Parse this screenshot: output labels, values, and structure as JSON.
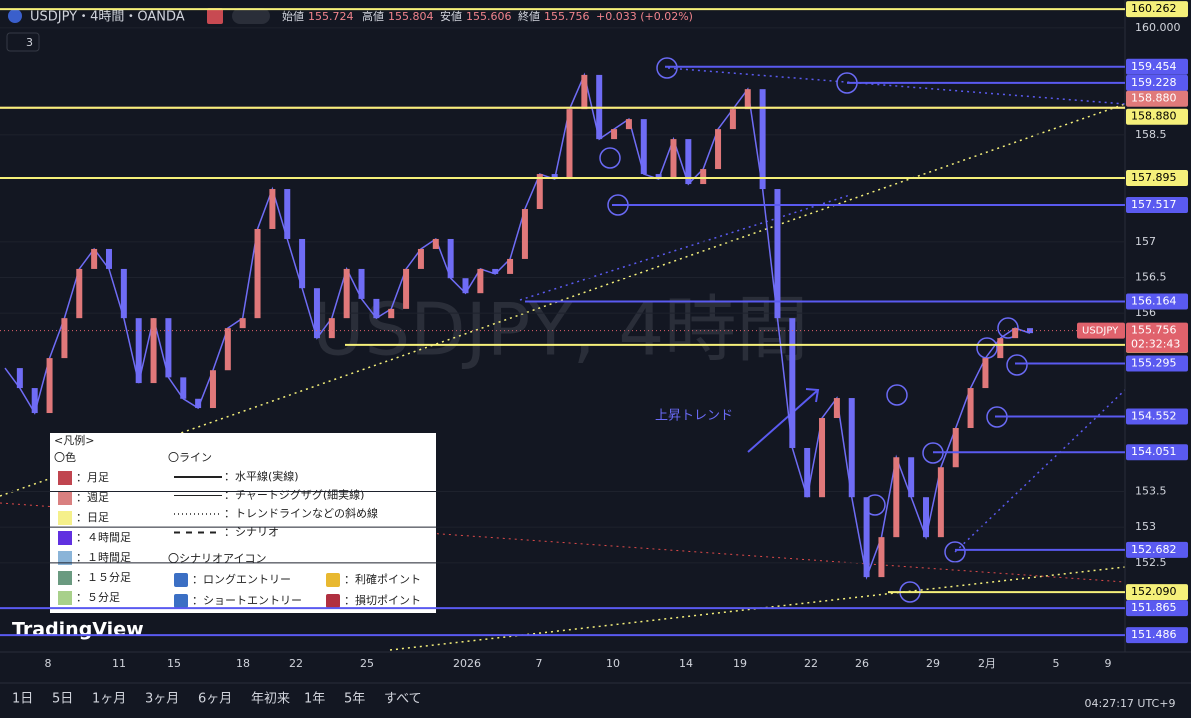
{
  "header": {
    "symbol": "USDJPY・4時間・OANDA",
    "open_label": "始値",
    "open": "155.724",
    "high_label": "高値",
    "high": "155.804",
    "low_label": "安値",
    "low": "155.606",
    "close_label": "終値",
    "close": "155.756",
    "change": "+0.033 (+0.02%)",
    "indicators": "3"
  },
  "chart_data": {
    "type": "line",
    "watermark": "USDJPY, 4時間",
    "annotation": "上昇トレンド",
    "ylim": [
      151.25,
      160.39
    ],
    "yticks": [
      {
        "value": 160,
        "label": "160.000"
      },
      152.5,
      153,
      153.5,
      156,
      156.5,
      157,
      158.5
    ],
    "xticks": [
      "8",
      "11",
      "15",
      "18",
      "22",
      "25",
      "2026",
      "7",
      "10",
      "14",
      "19",
      "22",
      "26",
      "29",
      "2月",
      "5",
      "9"
    ],
    "price": {
      "color": "#6f6cf5",
      "values": [
        155.23,
        154.95,
        154.6,
        155.37,
        155.93,
        156.62,
        156.9,
        156.62,
        155.93,
        155.02,
        155.93,
        155.1,
        154.8,
        154.67,
        155.2,
        155.79,
        155.93,
        157.18,
        157.74,
        157.04,
        156.35,
        155.65,
        155.93,
        156.62,
        156.2,
        155.93,
        156.06,
        156.62,
        156.9,
        157.04,
        156.49,
        156.28,
        156.62,
        156.55,
        156.76,
        157.46,
        157.95,
        157.88,
        158.86,
        159.34,
        158.44,
        158.58,
        158.72,
        157.95,
        157.88,
        158.44,
        157.81,
        158.02,
        158.58,
        158.86,
        159.14,
        157.74,
        155.93,
        154.11,
        153.42,
        154.53,
        154.81,
        153.42,
        152.3,
        152.86,
        153.98,
        153.42,
        152.86,
        153.84,
        154.39,
        154.95,
        155.37,
        155.65,
        155.79,
        155.72
      ]
    },
    "levels": [
      {
        "value": 160.262,
        "color": "#f5f07a"
      },
      {
        "value": 159.454,
        "color": "#5a5af0"
      },
      {
        "value": 159.228,
        "color": "#5a5af0"
      },
      {
        "value": 158.88,
        "label": "158.880",
        "color": "#e07a7a"
      },
      {
        "value": 158.88,
        "label": "158.880",
        "color": "#f5f07a"
      },
      {
        "value": 157.895,
        "color": "#f5f07a"
      },
      {
        "value": 157.517,
        "color": "#5a5af0"
      },
      {
        "value": 156.164,
        "color": "#5a5af0"
      },
      {
        "value": 155.555,
        "color": "#f5f07a"
      },
      {
        "value": 155.295,
        "color": "#5a5af0"
      },
      {
        "value": 154.552,
        "color": "#5a5af0"
      },
      {
        "value": 154.051,
        "color": "#5a5af0"
      },
      {
        "value": 152.682,
        "color": "#5a5af0"
      },
      {
        "value": 152.09,
        "label": "152.090",
        "color": "#f5f07a"
      },
      {
        "value": 151.865,
        "color": "#5a5af0"
      },
      {
        "value": 151.486,
        "color": "#5a5af0"
      }
    ],
    "last": {
      "value": 155.756,
      "symbol": "USDJPY",
      "countdown": "02:32:43",
      "color": "#e0626c"
    }
  },
  "legend": {
    "title": "<凡例>",
    "colors_title": "〇色",
    "colors": [
      {
        "label": "：月足",
        "color": "#c0454f"
      },
      {
        "label": "：週足",
        "color": "#d98080"
      },
      {
        "label": "：日足",
        "color": "#f5f08a"
      },
      {
        "label": "：４時間足",
        "color": "#6030e0"
      },
      {
        "label": "：１時間足",
        "color": "#8ab4d8"
      },
      {
        "label": "：１５分足",
        "color": "#6a9a80"
      },
      {
        "label": "：５分足",
        "color": "#a8d08a"
      }
    ],
    "lines_title": "〇ライン",
    "lines": [
      "：水平線(実線)",
      "：チャートジグザグ(細実線)",
      "：トレンドラインなどの斜め線",
      "：シナリオ"
    ],
    "icons_title": "〇シナリオアイコン",
    "icons": [
      "：ロングエントリー",
      "：ショートエントリー",
      "：利確ポイント",
      "：損切ポイント"
    ]
  },
  "logo": "TradingView",
  "toolbar": {
    "ranges": [
      "1日",
      "5日",
      "1ヶ月",
      "3ヶ月",
      "6ヶ月",
      "年初来",
      "1年",
      "5年",
      "すべて"
    ],
    "clock": "04:27:17 UTC+9"
  }
}
